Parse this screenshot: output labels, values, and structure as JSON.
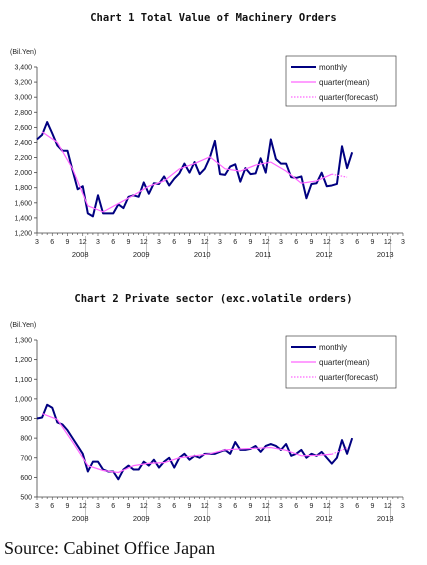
{
  "source": "Source: Cabinet Office Japan",
  "chart_data": [
    {
      "type": "line",
      "title": "Chart 1 Total Value of Machinery Orders",
      "unit": "(Bil.Yen)",
      "ylim": [
        1200,
        3400
      ],
      "yticks": [
        "1,200",
        "1,400",
        "1,600",
        "1,800",
        "2,000",
        "2,200",
        "2,400",
        "2,600",
        "2,800",
        "3,000",
        "3,200",
        "3,400"
      ],
      "xtick_labels": [
        "3",
        "6",
        "9",
        "12",
        "3",
        "6",
        "9",
        "12",
        "3",
        "6",
        "9",
        "12",
        "3",
        "6",
        "9",
        "12",
        "3",
        "6",
        "9",
        "12",
        "3",
        "6",
        "9",
        "12",
        "3"
      ],
      "year_labels": [
        {
          "label": "2008",
          "x": 11.5
        },
        {
          "label": "2009",
          "x": 23.5
        },
        {
          "label": "2010",
          "x": 35.5
        },
        {
          "label": "2011",
          "x": 47.5
        },
        {
          "label": "2012",
          "x": 59.5
        },
        {
          "label": "2013",
          "x": 71.5
        }
      ],
      "legend": [
        {
          "name": "monthly",
          "color": "#000080",
          "style": "solid"
        },
        {
          "name": "quarter(mean)",
          "color": "#ff66ff",
          "style": "solid"
        },
        {
          "name": "quarter(forecast)",
          "color": "#ff66ff",
          "style": "dotted"
        }
      ],
      "series": [
        {
          "name": "monthly",
          "x_start": 3,
          "values": [
            2440,
            2500,
            2670,
            2520,
            2360,
            2290,
            2290,
            2030,
            1780,
            1820,
            1460,
            1420,
            1700,
            1460,
            1460,
            1460,
            1580,
            1530,
            1680,
            1700,
            1680,
            1870,
            1720,
            1860,
            1850,
            1950,
            1830,
            1920,
            1990,
            2120,
            2000,
            2140,
            1980,
            2050,
            2200,
            2420,
            1980,
            1970,
            2080,
            2110,
            1880,
            2060,
            1980,
            1990,
            2190,
            2000,
            2440,
            2180,
            2120,
            2120,
            1940,
            1930,
            1950,
            1660,
            1850,
            1860,
            2000,
            1820,
            1830,
            1850,
            2350,
            2060,
            2270
          ]
        },
        {
          "name": "quarter(mean)",
          "x": [
            4,
            7,
            10,
            13,
            16,
            19,
            22,
            25,
            28,
            31,
            34,
            37,
            40,
            43,
            46,
            49,
            52,
            55,
            58,
            61
          ],
          "values": [
            2540,
            2400,
            2050,
            1560,
            1480,
            1590,
            1700,
            1820,
            1890,
            2050,
            2120,
            2210,
            2050,
            2020,
            2100,
            2140,
            2020,
            1860,
            1890,
            1980
          ]
        },
        {
          "name": "quarter(forecast)",
          "x": [
            61,
            64
          ],
          "values": [
            1980,
            1940
          ]
        }
      ]
    },
    {
      "type": "line",
      "title": "Chart 2 Private sector (exc.volatile orders)",
      "unit": "(Bil.Yen)",
      "ylim": [
        500,
        1300
      ],
      "yticks": [
        "500",
        "600",
        "700",
        "800",
        "900",
        "1,000",
        "1,100",
        "1,200",
        "1,300"
      ],
      "xtick_labels": [
        "3",
        "6",
        "9",
        "12",
        "3",
        "6",
        "9",
        "12",
        "3",
        "6",
        "9",
        "12",
        "3",
        "6",
        "9",
        "12",
        "3",
        "6",
        "9",
        "12",
        "3",
        "6",
        "9",
        "12",
        "3"
      ],
      "year_labels": [
        {
          "label": "2008",
          "x": 11.5
        },
        {
          "label": "2009",
          "x": 23.5
        },
        {
          "label": "2010",
          "x": 35.5
        },
        {
          "label": "2011",
          "x": 47.5
        },
        {
          "label": "2012",
          "x": 59.5
        },
        {
          "label": "2013",
          "x": 71.5
        }
      ],
      "legend": [
        {
          "name": "monthly",
          "color": "#000080",
          "style": "solid"
        },
        {
          "name": "quarter(mean)",
          "color": "#ff66ff",
          "style": "solid"
        },
        {
          "name": "quarter(forecast)",
          "color": "#ff66ff",
          "style": "dotted"
        }
      ],
      "series": [
        {
          "name": "monthly",
          "x_start": 3,
          "values": [
            900,
            905,
            970,
            955,
            880,
            870,
            840,
            800,
            760,
            720,
            630,
            680,
            680,
            640,
            630,
            630,
            590,
            640,
            660,
            640,
            640,
            680,
            660,
            690,
            650,
            680,
            700,
            650,
            700,
            720,
            690,
            710,
            700,
            720,
            720,
            720,
            730,
            740,
            720,
            780,
            740,
            740,
            745,
            760,
            730,
            760,
            770,
            760,
            740,
            770,
            710,
            720,
            740,
            700,
            720,
            710,
            730,
            700,
            670,
            700,
            790,
            720,
            800
          ]
        },
        {
          "name": "quarter(mean)",
          "x": [
            4,
            7,
            10,
            13,
            16,
            19,
            22,
            25,
            28,
            31,
            34,
            37,
            40,
            43,
            46,
            49,
            52,
            55,
            58,
            61
          ],
          "values": [
            925,
            895,
            780,
            660,
            635,
            625,
            660,
            672,
            675,
            700,
            710,
            720,
            740,
            745,
            748,
            752,
            738,
            710,
            712,
            718
          ]
        },
        {
          "name": "quarter(forecast)",
          "x": [
            61,
            64
          ],
          "values": [
            718,
            750
          ]
        }
      ]
    }
  ]
}
